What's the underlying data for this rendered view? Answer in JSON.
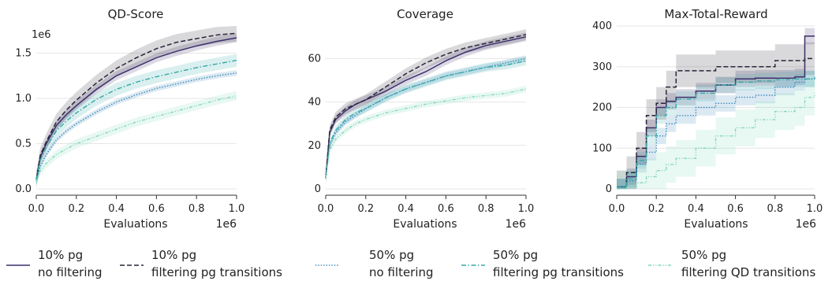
{
  "colors": {
    "pg10_nofilter": "#3b2f6b",
    "pg10_filter_pg": "#2a2538",
    "pg50_nofilter": "#3a86b8",
    "pg50_filter_pg": "#34a9a6",
    "pg50_filter_qd": "#7fd6b6"
  },
  "legend": [
    {
      "line1": "10% pg",
      "line2": "no filtering"
    },
    {
      "line1": "10% pg",
      "line2": "filtering pg transitions"
    },
    {
      "line1": "50% pg",
      "line2": "no filtering"
    },
    {
      "line1": "50% pg",
      "line2": "filtering pg transitions"
    },
    {
      "line1": "50% pg",
      "line2": "filtering QD transitions"
    }
  ],
  "chart_data": [
    {
      "type": "line",
      "title": "QD-Score",
      "xlabel": "Evaluations",
      "x_scale_label": "1e6",
      "y_scale_label": "1e6",
      "xlim": [
        0,
        1.0
      ],
      "ylim": [
        0,
        1.8
      ],
      "xticks": [
        "0.0",
        "0.2",
        "0.4",
        "0.6",
        "0.8",
        "1.0"
      ],
      "yticks": [
        "0.0",
        "0.5",
        "1.0",
        "1.5"
      ],
      "x": [
        0,
        0.02,
        0.05,
        0.1,
        0.15,
        0.2,
        0.3,
        0.4,
        0.5,
        0.6,
        0.7,
        0.8,
        0.9,
        1.0
      ],
      "series": [
        {
          "key": "pg10_nofilter",
          "style": "solid",
          "values": [
            0.1,
            0.35,
            0.5,
            0.7,
            0.82,
            0.92,
            1.1,
            1.25,
            1.35,
            1.45,
            1.52,
            1.58,
            1.63,
            1.67
          ],
          "band": 0.05
        },
        {
          "key": "pg10_filter_pg",
          "style": "dashed",
          "values": [
            0.1,
            0.37,
            0.52,
            0.74,
            0.87,
            0.98,
            1.17,
            1.33,
            1.45,
            1.55,
            1.62,
            1.66,
            1.7,
            1.72
          ],
          "band": 0.09
        },
        {
          "key": "pg50_nofilter",
          "style": "dotted",
          "values": [
            0.08,
            0.25,
            0.38,
            0.54,
            0.64,
            0.72,
            0.85,
            0.96,
            1.04,
            1.11,
            1.16,
            1.21,
            1.25,
            1.28
          ],
          "band": 0.03
        },
        {
          "key": "pg50_filter_pg",
          "style": "dashdot",
          "values": [
            0.1,
            0.32,
            0.46,
            0.64,
            0.75,
            0.84,
            0.99,
            1.1,
            1.18,
            1.24,
            1.29,
            1.34,
            1.38,
            1.42
          ],
          "band": 0.07
        },
        {
          "key": "pg50_filter_qd",
          "style": "dashdotdot",
          "values": [
            0.08,
            0.2,
            0.28,
            0.38,
            0.44,
            0.5,
            0.58,
            0.66,
            0.74,
            0.8,
            0.86,
            0.92,
            0.98,
            1.03
          ],
          "band": 0.05
        }
      ]
    },
    {
      "type": "line",
      "title": "Coverage",
      "xlabel": "Evaluations",
      "x_scale_label": "1e6",
      "xlim": [
        0,
        1.0
      ],
      "ylim": [
        0,
        75
      ],
      "xticks": [
        "0.0",
        "0.2",
        "0.4",
        "0.6",
        "0.8",
        "1.0"
      ],
      "yticks": [
        "0",
        "20",
        "40",
        "60"
      ],
      "x": [
        0,
        0.02,
        0.05,
        0.1,
        0.15,
        0.2,
        0.3,
        0.4,
        0.5,
        0.6,
        0.7,
        0.8,
        0.9,
        1.0
      ],
      "series": [
        {
          "key": "pg10_nofilter",
          "style": "solid",
          "values": [
            5,
            26,
            32,
            36,
            39,
            41,
            45,
            50,
            54,
            59,
            63,
            66,
            68,
            70
          ],
          "band": 2
        },
        {
          "key": "pg10_filter_pg",
          "style": "dashed",
          "values": [
            5,
            27,
            33,
            37,
            39,
            41,
            47,
            53,
            58,
            62,
            65,
            67,
            69,
            71
          ],
          "band": 2.5
        },
        {
          "key": "pg50_nofilter",
          "style": "dotted",
          "values": [
            5,
            20,
            26,
            31,
            34,
            37,
            42,
            46,
            49,
            52,
            54,
            56,
            58,
            60
          ],
          "band": 1.5
        },
        {
          "key": "pg50_filter_pg",
          "style": "dashdot",
          "values": [
            5,
            21,
            27,
            32,
            35,
            37,
            42,
            46,
            49,
            52,
            54,
            56,
            57,
            59
          ],
          "band": 2
        },
        {
          "key": "pg50_filter_qd",
          "style": "dashdotdot",
          "values": [
            5,
            18,
            23,
            27,
            30,
            32,
            35,
            37,
            39,
            40.5,
            42,
            43,
            44,
            46
          ],
          "band": 1.5
        }
      ]
    },
    {
      "type": "line",
      "title": "Max-Total-Reward",
      "xlabel": "Evaluations",
      "x_scale_label": "1e6",
      "xlim": [
        0,
        1.0
      ],
      "ylim": [
        0,
        400
      ],
      "xticks": [
        "0.0",
        "0.2",
        "0.4",
        "0.6",
        "0.8",
        "1.0"
      ],
      "yticks": [
        "0",
        "100",
        "200",
        "300",
        "400"
      ],
      "x": [
        0,
        0.05,
        0.1,
        0.15,
        0.2,
        0.25,
        0.3,
        0.4,
        0.5,
        0.6,
        0.7,
        0.8,
        0.9,
        0.95,
        1.0
      ],
      "series": [
        {
          "key": "pg10_nofilter",
          "style": "solid",
          "values": [
            5,
            30,
            80,
            150,
            200,
            215,
            225,
            240,
            255,
            270,
            272,
            272,
            275,
            375,
            375
          ],
          "band": 20
        },
        {
          "key": "pg10_filter_pg",
          "style": "dashed",
          "values": [
            5,
            40,
            100,
            180,
            210,
            250,
            290,
            290,
            300,
            300,
            300,
            315,
            315,
            320,
            320
          ],
          "band": 40
        },
        {
          "key": "pg50_nofilter",
          "style": "dotted",
          "values": [
            5,
            20,
            60,
            90,
            130,
            160,
            180,
            200,
            210,
            225,
            230,
            250,
            262,
            270,
            270
          ],
          "band": 20
        },
        {
          "key": "pg50_filter_pg",
          "style": "dashdot",
          "values": [
            5,
            25,
            70,
            130,
            180,
            200,
            220,
            235,
            255,
            262,
            265,
            268,
            270,
            270,
            275
          ],
          "band": 20
        },
        {
          "key": "pg50_filter_qd",
          "style": "dashdotdot",
          "values": [
            0,
            5,
            15,
            30,
            45,
            60,
            75,
            100,
            130,
            150,
            170,
            190,
            200,
            225,
            235
          ],
          "band": 45
        }
      ]
    }
  ]
}
